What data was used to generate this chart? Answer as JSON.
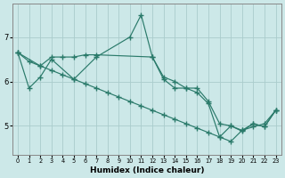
{
  "xlabel": "Humidex (Indice chaleur)",
  "background_color": "#cce8e8",
  "grid_color": "#aacccc",
  "line_color": "#2a7a6a",
  "xlim": [
    -0.5,
    23.5
  ],
  "ylim": [
    4.35,
    7.75
  ],
  "yticks": [
    5,
    6,
    7
  ],
  "xticks": [
    0,
    1,
    2,
    3,
    4,
    5,
    6,
    7,
    8,
    9,
    10,
    11,
    12,
    13,
    14,
    15,
    16,
    17,
    18,
    19,
    20,
    21,
    22,
    23
  ],
  "series": [
    {
      "x": [
        0,
        1,
        2,
        3,
        5,
        7,
        10,
        11,
        12,
        13,
        14,
        15,
        16,
        17,
        18,
        19,
        20,
        21,
        22,
        23
      ],
      "y": [
        6.65,
        5.85,
        6.1,
        6.5,
        6.05,
        6.55,
        7.0,
        7.5,
        6.55,
        6.1,
        6.0,
        5.85,
        5.75,
        5.5,
        4.75,
        5.0,
        4.88,
        5.05,
        4.98,
        5.35
      ]
    },
    {
      "x": [
        0,
        2,
        3,
        4,
        5,
        6,
        7,
        12,
        13,
        14,
        15,
        16,
        17,
        18,
        19,
        20,
        21,
        22,
        23
      ],
      "y": [
        6.65,
        6.35,
        6.55,
        6.55,
        6.55,
        6.6,
        6.6,
        6.55,
        6.05,
        5.85,
        5.85,
        5.85,
        5.55,
        5.05,
        5.0,
        4.9,
        5.05,
        4.98,
        5.35
      ]
    },
    {
      "x": [
        0,
        1,
        2,
        3,
        4,
        5,
        6,
        7,
        8,
        9,
        10,
        11,
        12,
        13,
        14,
        15,
        16,
        17,
        18,
        19,
        20,
        21,
        22,
        23
      ],
      "y": [
        6.65,
        6.45,
        6.35,
        6.25,
        6.15,
        6.05,
        5.95,
        5.85,
        5.75,
        5.65,
        5.55,
        5.45,
        5.35,
        5.25,
        5.15,
        5.05,
        4.95,
        4.85,
        4.75,
        4.65,
        4.9,
        4.98,
        5.05,
        5.35
      ]
    }
  ]
}
